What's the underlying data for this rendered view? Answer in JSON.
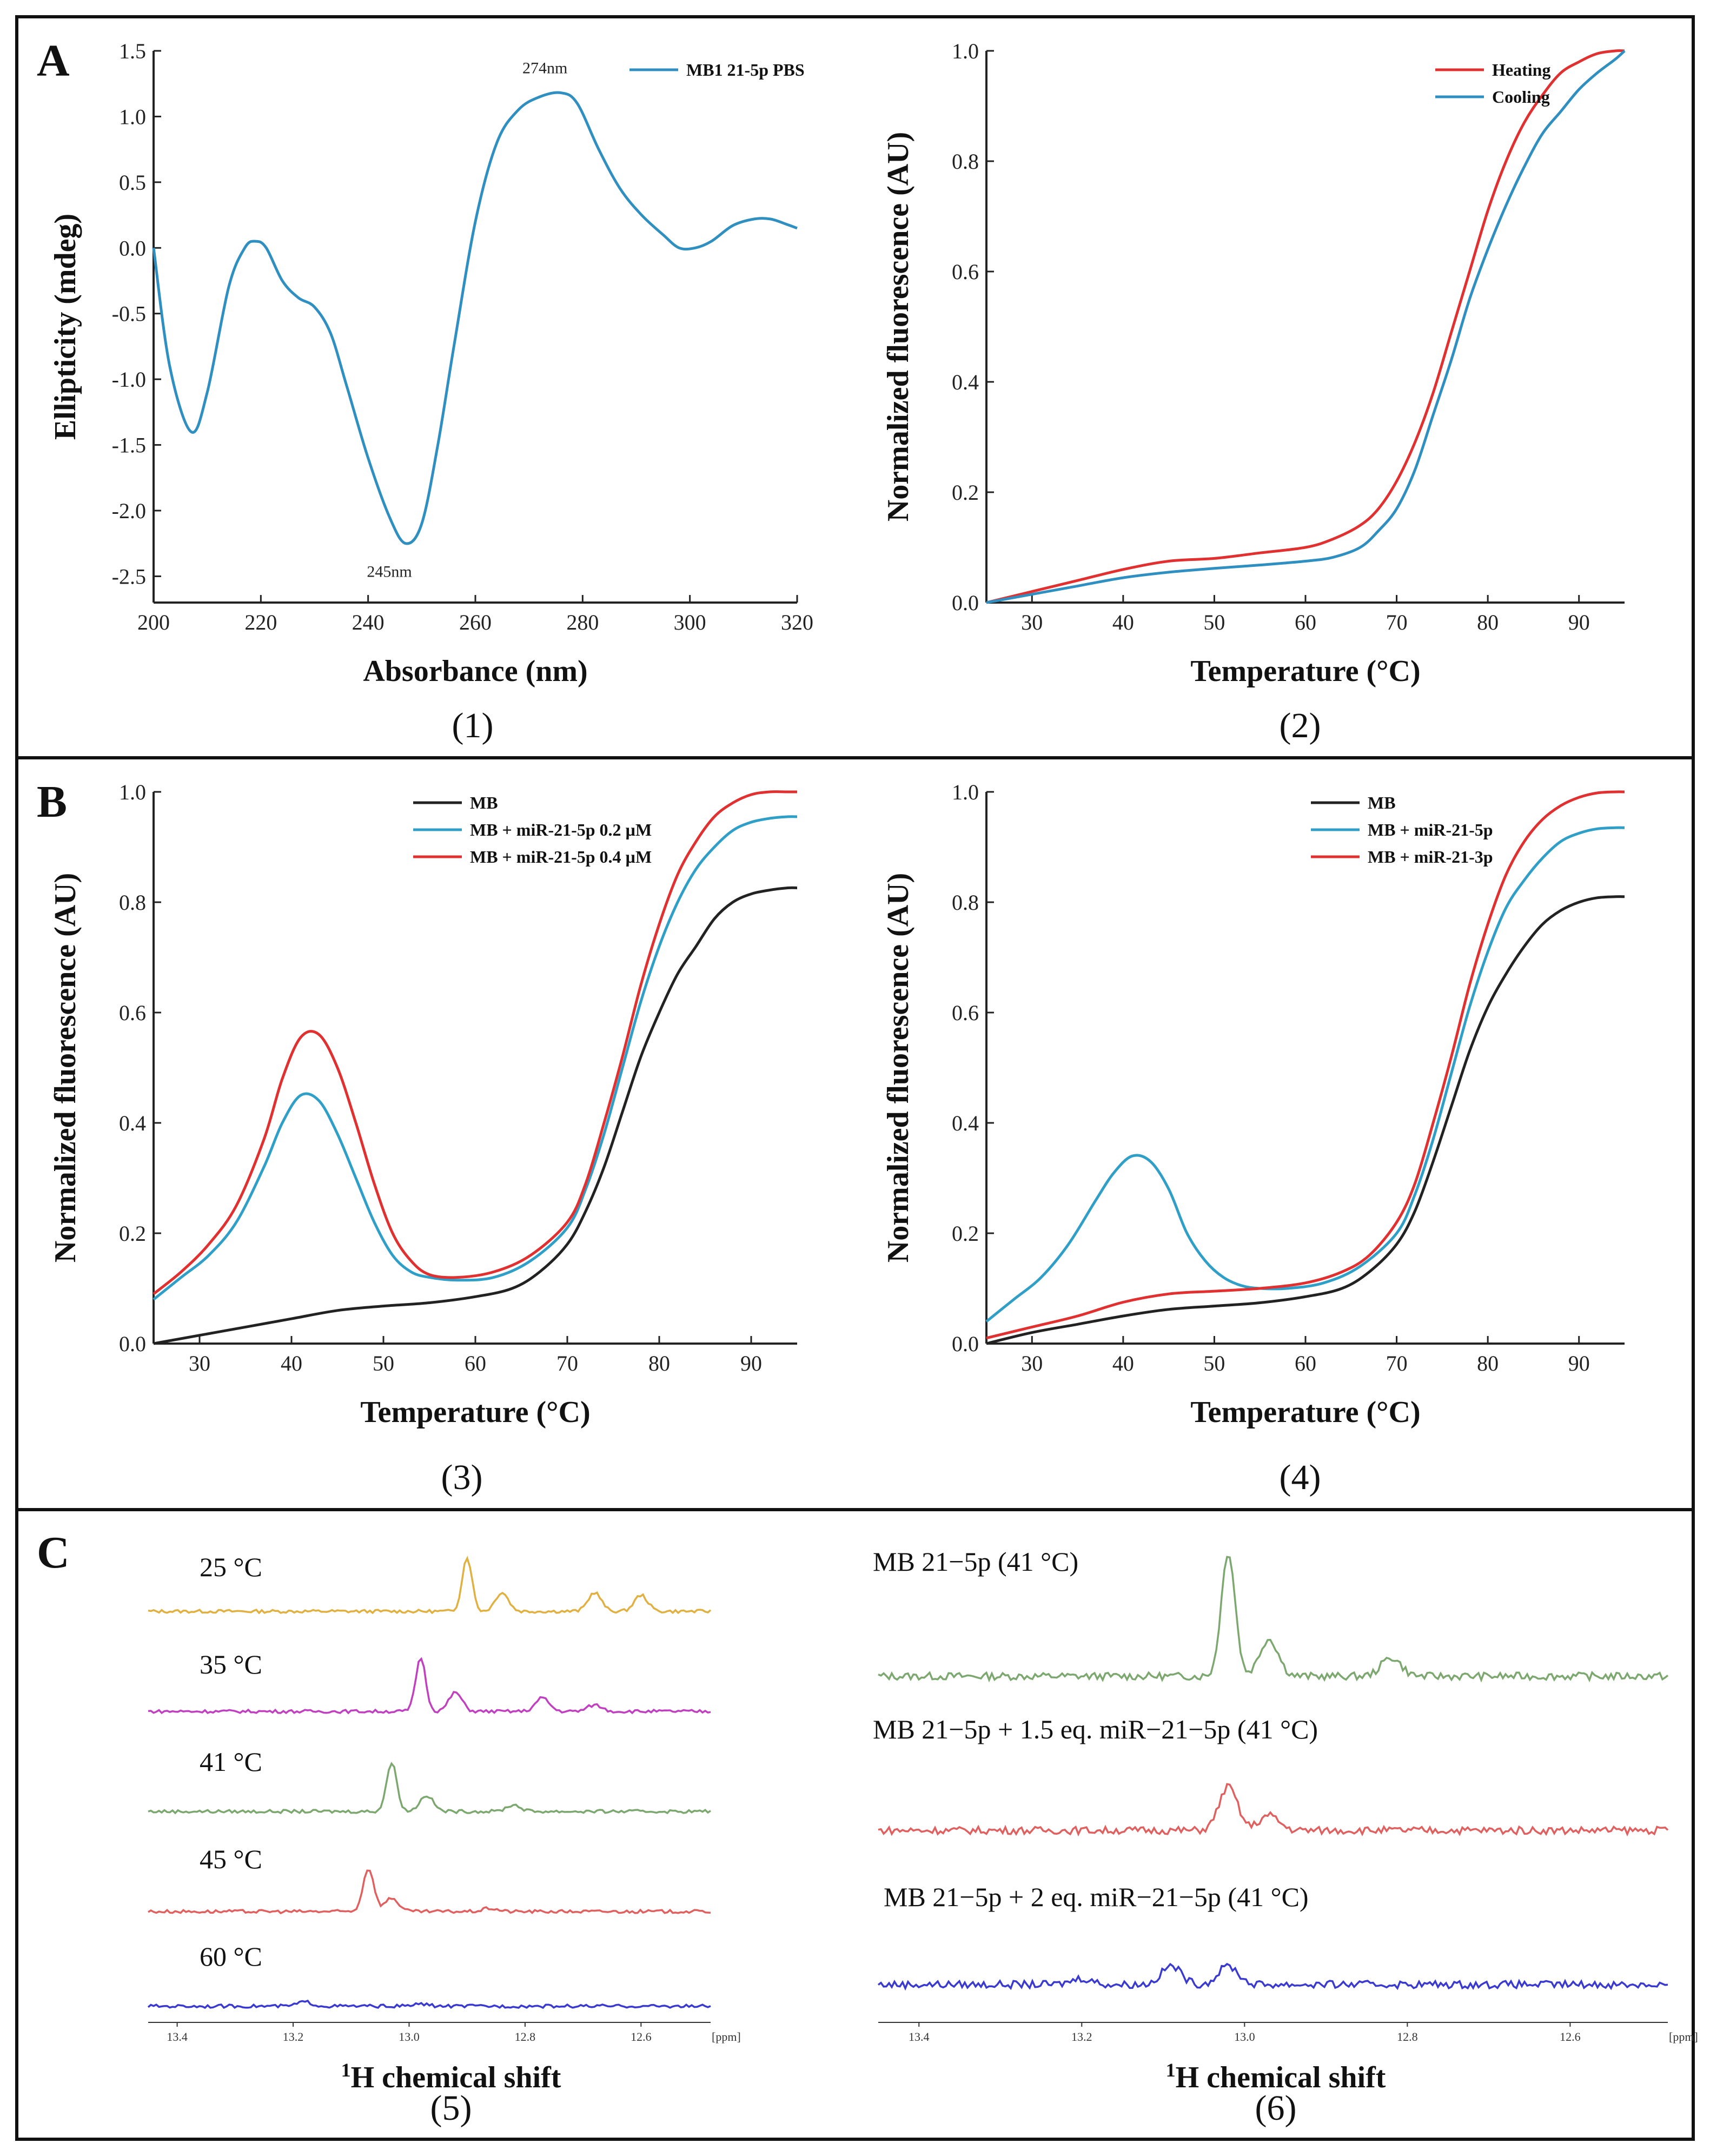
{
  "panels": {
    "a": {
      "letter": "A"
    },
    "b": {
      "letter": "B"
    },
    "c": {
      "letter": "C"
    }
  },
  "sublabels": [
    "(1)",
    "(2)",
    "(3)",
    "(4)",
    "(5)",
    "(6)"
  ],
  "chart_data": [
    {
      "id": "c1",
      "type": "line",
      "xlabel": "Absorbance (nm)",
      "ylabel": "Ellipticity (mdeg)",
      "xlim": [
        200,
        320
      ],
      "ylim": [
        -2.7,
        1.5
      ],
      "xticks": [
        200,
        220,
        240,
        260,
        280,
        300,
        320
      ],
      "yticks": [
        -2.5,
        -2.0,
        -1.5,
        -1.0,
        -0.5,
        0.0,
        0.5,
        1.0,
        1.5
      ],
      "ytick_labels": [
        "-2.5",
        "-2.0",
        "-1.5",
        "-1.0",
        "-0.5",
        "0.0",
        "0.5",
        "1.0",
        "1.5"
      ],
      "legend_position": "top-right",
      "series": [
        {
          "name": "MB1 21-5p PBS",
          "color": "#2f8fc0",
          "x": [
            200,
            203,
            207,
            210,
            214,
            217,
            219,
            221,
            224,
            227,
            230,
            233,
            236,
            240,
            244,
            247,
            250,
            253,
            256,
            260,
            264,
            268,
            272,
            276,
            279,
            283,
            287,
            291,
            295,
            298,
            301,
            304,
            308,
            312,
            315,
            318,
            320
          ],
          "y": [
            0.0,
            -0.9,
            -1.4,
            -1.1,
            -0.3,
            0.0,
            0.05,
            0.0,
            -0.25,
            -0.38,
            -0.45,
            -0.65,
            -1.05,
            -1.6,
            -2.05,
            -2.25,
            -2.1,
            -1.5,
            -0.75,
            0.2,
            0.8,
            1.05,
            1.15,
            1.18,
            1.1,
            0.75,
            0.45,
            0.25,
            0.1,
            0.0,
            0.0,
            0.05,
            0.17,
            0.22,
            0.22,
            0.18,
            0.15
          ]
        }
      ],
      "annotations": [
        {
          "text": "274nm",
          "x": 276,
          "y": 1.18
        },
        {
          "text": "245nm",
          "x": 247,
          "y": -2.25
        }
      ]
    },
    {
      "id": "c2",
      "type": "line",
      "xlabel": "Temperature (°C)",
      "ylabel": "Normalized fluorescence (AU)",
      "xlim": [
        25,
        95
      ],
      "ylim": [
        0,
        1
      ],
      "xticks": [
        30,
        40,
        50,
        60,
        70,
        80,
        90
      ],
      "yticks": [
        0,
        0.2,
        0.4,
        0.6,
        0.8,
        1.0
      ],
      "ytick_labels": [
        "0.0",
        "0.2",
        "0.4",
        "0.6",
        "0.8",
        "1.0"
      ],
      "legend_position": "top-right",
      "series": [
        {
          "name": "Heating",
          "color": "#e03030",
          "x": [
            25,
            30,
            35,
            40,
            45,
            50,
            55,
            60,
            63,
            66,
            68,
            70,
            72,
            74,
            76,
            78,
            80,
            82,
            84,
            86,
            88,
            90,
            92,
            94,
            95
          ],
          "y": [
            0.0,
            0.02,
            0.04,
            0.06,
            0.075,
            0.08,
            0.09,
            0.1,
            0.115,
            0.14,
            0.17,
            0.22,
            0.29,
            0.38,
            0.49,
            0.6,
            0.71,
            0.8,
            0.87,
            0.92,
            0.96,
            0.98,
            0.995,
            1.0,
            1.0
          ]
        },
        {
          "name": "Cooling",
          "color": "#2f8fc0",
          "x": [
            25,
            30,
            35,
            40,
            45,
            50,
            55,
            60,
            63,
            66,
            68,
            70,
            72,
            74,
            76,
            78,
            80,
            82,
            84,
            86,
            88,
            90,
            92,
            94,
            95
          ],
          "y": [
            0.0,
            0.015,
            0.03,
            0.045,
            0.055,
            0.062,
            0.068,
            0.075,
            0.082,
            0.1,
            0.13,
            0.17,
            0.24,
            0.34,
            0.44,
            0.55,
            0.64,
            0.72,
            0.79,
            0.85,
            0.89,
            0.93,
            0.96,
            0.985,
            1.0
          ]
        }
      ]
    },
    {
      "id": "c3",
      "type": "line",
      "xlabel": "Temperature (°C)",
      "ylabel": "Normalized fluorescence (AU)",
      "xlim": [
        25,
        95
      ],
      "ylim": [
        0,
        1
      ],
      "xticks": [
        30,
        40,
        50,
        60,
        70,
        80,
        90
      ],
      "yticks": [
        0,
        0.2,
        0.4,
        0.6,
        0.8,
        1.0
      ],
      "ytick_labels": [
        "0.0",
        "0.2",
        "0.4",
        "0.6",
        "0.8",
        "1.0"
      ],
      "legend_position": "top-right",
      "series": [
        {
          "name": "MB",
          "color": "#222222",
          "x": [
            25,
            30,
            35,
            40,
            45,
            50,
            55,
            60,
            64,
            67,
            70,
            72,
            74,
            76,
            78,
            80,
            82,
            84,
            86,
            88,
            90,
            92,
            94,
            95
          ],
          "y": [
            0.0,
            0.015,
            0.03,
            0.045,
            0.06,
            0.068,
            0.074,
            0.085,
            0.1,
            0.13,
            0.18,
            0.24,
            0.32,
            0.42,
            0.52,
            0.6,
            0.67,
            0.72,
            0.77,
            0.8,
            0.815,
            0.822,
            0.826,
            0.826
          ]
        },
        {
          "name": "MB + miR-21-5p 0.2 µM",
          "color": "#2f9fc8",
          "x": [
            25,
            28,
            31,
            34,
            37,
            39,
            41,
            43,
            45,
            47,
            49,
            51,
            53,
            55,
            58,
            62,
            66,
            70,
            72,
            74,
            76,
            78,
            80,
            82,
            84,
            86,
            88,
            90,
            92,
            94,
            95
          ],
          "y": [
            0.08,
            0.12,
            0.16,
            0.22,
            0.32,
            0.4,
            0.45,
            0.44,
            0.38,
            0.3,
            0.22,
            0.16,
            0.13,
            0.12,
            0.115,
            0.12,
            0.15,
            0.21,
            0.28,
            0.38,
            0.5,
            0.62,
            0.72,
            0.8,
            0.86,
            0.9,
            0.93,
            0.945,
            0.952,
            0.955,
            0.955
          ]
        },
        {
          "name": "MB + miR-21-5p 0.4 µM",
          "color": "#e03030",
          "x": [
            25,
            28,
            31,
            34,
            37,
            39,
            41,
            43,
            45,
            47,
            49,
            51,
            53,
            55,
            58,
            62,
            66,
            70,
            72,
            74,
            76,
            78,
            80,
            82,
            84,
            86,
            88,
            90,
            92,
            94,
            95
          ],
          "y": [
            0.09,
            0.13,
            0.18,
            0.25,
            0.37,
            0.48,
            0.555,
            0.56,
            0.5,
            0.4,
            0.29,
            0.2,
            0.15,
            0.125,
            0.12,
            0.13,
            0.16,
            0.22,
            0.29,
            0.4,
            0.52,
            0.65,
            0.76,
            0.85,
            0.91,
            0.955,
            0.98,
            0.995,
            1.0,
            1.0,
            1.0
          ]
        }
      ]
    },
    {
      "id": "c4",
      "type": "line",
      "xlabel": "Temperature (°C)",
      "ylabel": "Normalized fluorescence (AU)",
      "xlim": [
        25,
        95
      ],
      "ylim": [
        0,
        1
      ],
      "xticks": [
        30,
        40,
        50,
        60,
        70,
        80,
        90
      ],
      "yticks": [
        0,
        0.2,
        0.4,
        0.6,
        0.8,
        1.0
      ],
      "ytick_labels": [
        "0.0",
        "0.2",
        "0.4",
        "0.6",
        "0.8",
        "1.0"
      ],
      "legend_position": "top-right",
      "series": [
        {
          "name": "MB",
          "color": "#222222",
          "x": [
            25,
            30,
            35,
            40,
            45,
            50,
            55,
            60,
            64,
            67,
            70,
            72,
            74,
            76,
            78,
            80,
            82,
            84,
            86,
            88,
            90,
            92,
            94,
            95
          ],
          "y": [
            0.0,
            0.02,
            0.035,
            0.05,
            0.062,
            0.068,
            0.074,
            0.085,
            0.1,
            0.13,
            0.18,
            0.24,
            0.33,
            0.43,
            0.53,
            0.61,
            0.67,
            0.72,
            0.76,
            0.785,
            0.8,
            0.808,
            0.81,
            0.81
          ]
        },
        {
          "name": "MB + miR-21-5p",
          "color": "#2f9fc8",
          "x": [
            25,
            28,
            31,
            34,
            37,
            39,
            41,
            43,
            45,
            47,
            49,
            51,
            53,
            55,
            58,
            62,
            66,
            70,
            72,
            74,
            76,
            78,
            80,
            82,
            84,
            86,
            88,
            90,
            92,
            94,
            95
          ],
          "y": [
            0.04,
            0.08,
            0.12,
            0.18,
            0.26,
            0.31,
            0.34,
            0.33,
            0.28,
            0.2,
            0.15,
            0.12,
            0.105,
            0.1,
            0.1,
            0.11,
            0.14,
            0.2,
            0.27,
            0.37,
            0.49,
            0.61,
            0.71,
            0.79,
            0.84,
            0.88,
            0.91,
            0.925,
            0.933,
            0.935,
            0.935
          ]
        },
        {
          "name": "MB + miR-21-3p",
          "color": "#e03030",
          "x": [
            25,
            30,
            35,
            40,
            45,
            50,
            55,
            60,
            64,
            67,
            70,
            72,
            74,
            76,
            78,
            80,
            82,
            84,
            86,
            88,
            90,
            92,
            94,
            95
          ],
          "y": [
            0.01,
            0.03,
            0.05,
            0.075,
            0.09,
            0.095,
            0.1,
            0.11,
            0.13,
            0.16,
            0.22,
            0.29,
            0.4,
            0.52,
            0.65,
            0.76,
            0.85,
            0.91,
            0.95,
            0.975,
            0.99,
            0.998,
            1.0,
            1.0
          ]
        }
      ]
    }
  ],
  "nmr": {
    "xlabel_prefix": "1",
    "xlabel_suffix": "H chemical shift",
    "unit": "[ppm]",
    "xticks": [
      "13.4",
      "13.2",
      "13.0",
      "12.8",
      "12.6"
    ],
    "panel5": [
      {
        "label": "25 °C",
        "color": "#e0b040",
        "peaks": [
          [
            12.9,
            1.0
          ],
          [
            12.84,
            0.35
          ],
          [
            12.68,
            0.35
          ],
          [
            12.6,
            0.3
          ]
        ]
      },
      {
        "label": "35 °C",
        "color": "#c040c0",
        "peaks": [
          [
            12.98,
            1.0
          ],
          [
            12.92,
            0.35
          ],
          [
            12.77,
            0.25
          ],
          [
            12.68,
            0.12
          ]
        ]
      },
      {
        "label": "41 °C",
        "color": "#7ca870",
        "peaks": [
          [
            13.03,
            0.9
          ],
          [
            12.97,
            0.3
          ],
          [
            12.82,
            0.12
          ]
        ]
      },
      {
        "label": "45 °C",
        "color": "#e06060",
        "peaks": [
          [
            13.07,
            0.8
          ],
          [
            13.03,
            0.25
          ],
          [
            12.86,
            0.06
          ]
        ]
      },
      {
        "label": "60 °C",
        "color": "#3a3ad0",
        "peaks": [
          [
            13.18,
            0.08
          ],
          [
            12.98,
            0.04
          ]
        ]
      }
    ],
    "panel6": [
      {
        "label": "MB 21−5p (41 °C)",
        "color": "#7ca870",
        "peaks": [
          [
            13.02,
            1.0
          ],
          [
            12.97,
            0.3
          ],
          [
            12.82,
            0.15
          ]
        ]
      },
      {
        "label": "MB 21−5p + 1.5 eq. miR−21−5p (41 °C)",
        "color": "#e06060",
        "peaks": [
          [
            13.02,
            0.35
          ],
          [
            12.97,
            0.12
          ]
        ]
      },
      {
        "label": "MB 21−5p + 2 eq. miR−21−5p (41 °C)",
        "color": "#3a3ad0",
        "peaks": [
          [
            13.09,
            0.15
          ],
          [
            13.02,
            0.15
          ],
          [
            13.2,
            0.05
          ]
        ]
      }
    ]
  }
}
